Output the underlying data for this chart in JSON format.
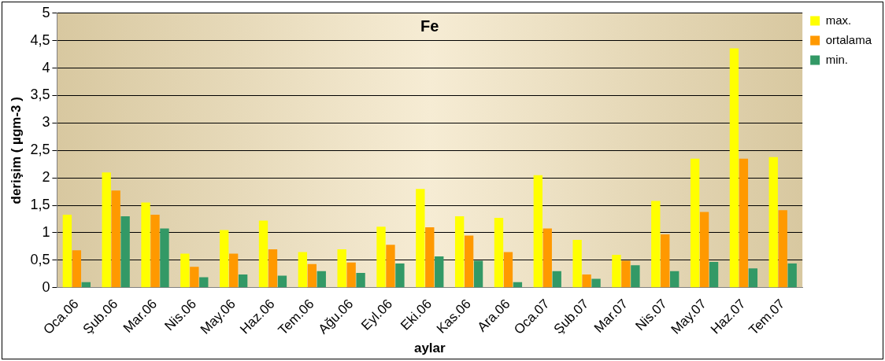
{
  "chart_data": {
    "type": "bar",
    "title": "Fe",
    "xlabel": "aylar",
    "ylabel": "derişim ( µgm-3 )",
    "categories": [
      "Oca.06",
      "Şub.06",
      "Mar.06",
      "Nis.06",
      "May.06",
      "Haz.06",
      "Tem.06",
      "Ağu.06",
      "Eyl.06",
      "Eki.06",
      "Kas.06",
      "Ara.06",
      "Oca.07",
      "Şub.07",
      "Mar.07",
      "Nis.07",
      "May.07",
      "Haz.07",
      "Tem.07"
    ],
    "series": [
      {
        "name": "max.",
        "color": "#ffff00",
        "values": [
          1.33,
          2.1,
          1.55,
          0.62,
          1.05,
          1.22,
          0.65,
          0.7,
          1.11,
          1.8,
          1.3,
          1.27,
          2.05,
          0.87,
          0.6,
          1.58,
          2.35,
          4.36,
          2.38
        ]
      },
      {
        "name": "ortalama",
        "color": "#ff9900",
        "values": [
          0.68,
          1.77,
          1.33,
          0.38,
          0.62,
          0.7,
          0.43,
          0.46,
          0.78,
          1.1,
          0.95,
          0.65,
          1.08,
          0.24,
          0.49,
          0.97,
          1.38,
          2.35,
          1.41
        ]
      },
      {
        "name": "min.",
        "color": "#339966",
        "values": [
          0.1,
          1.3,
          1.08,
          0.19,
          0.24,
          0.22,
          0.3,
          0.27,
          0.44,
          0.57,
          0.49,
          0.1,
          0.3,
          0.16,
          0.41,
          0.3,
          0.47,
          0.35,
          0.44
        ]
      }
    ],
    "ylim": [
      0,
      5
    ],
    "yticks": [
      0,
      {
        "value": 0.5,
        "label": "0,5"
      },
      1,
      {
        "value": 1.5,
        "label": "1,5"
      },
      2,
      {
        "value": 2.5,
        "label": "2,5"
      },
      3,
      {
        "value": 3.5,
        "label": "3,5"
      },
      4,
      {
        "value": 4.5,
        "label": "4,5"
      },
      5
    ],
    "grid": "y",
    "legend": "top right"
  }
}
